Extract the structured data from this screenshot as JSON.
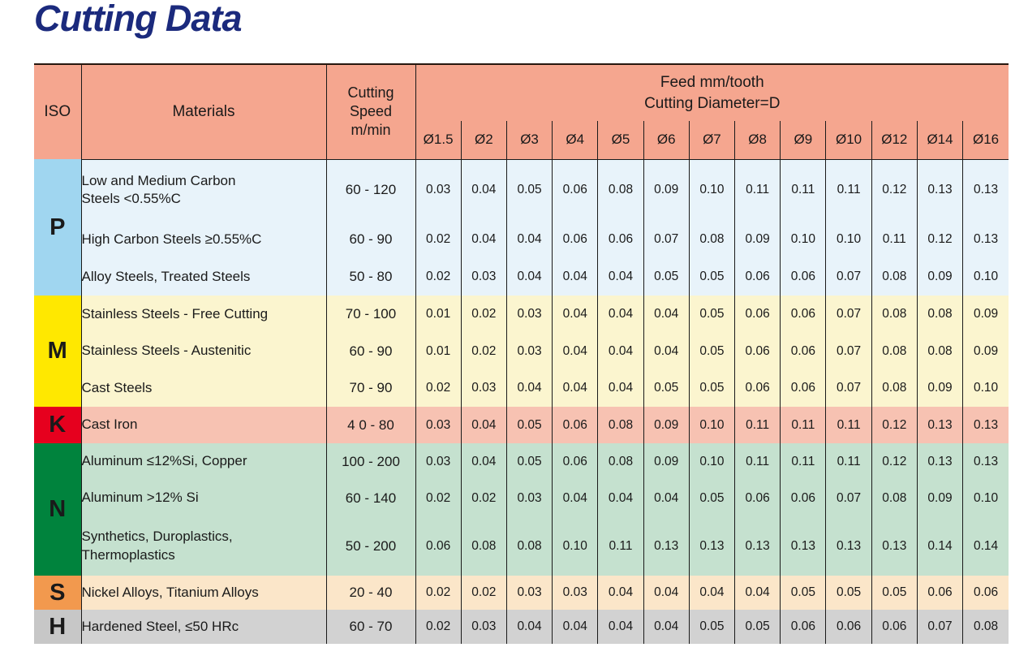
{
  "title": "Cutting Data",
  "title_color": "#1b2a7d",
  "table": {
    "colors": {
      "header_bg": "#f5a68f",
      "border": "#1a1a1a"
    },
    "headers": {
      "iso": "ISO",
      "materials": "Materials",
      "cutting_speed": "Cutting Speed m/min",
      "feed_title": "Feed mm/tooth",
      "feed_subtitle": "Cutting Diameter=D",
      "diameters": [
        "Ø1.5",
        "Ø2",
        "Ø3",
        "Ø4",
        "Ø5",
        "Ø6",
        "Ø7",
        "Ø8",
        "Ø9",
        "Ø10",
        "Ø12",
        "Ø14",
        "Ø16"
      ]
    },
    "groups": [
      {
        "iso": "P",
        "iso_bg": "#a0d6f0",
        "row_bg": "#e8f3fa",
        "rows": [
          {
            "material": "Low and Medium Carbon\nSteels <0.55%C",
            "speed": "60 - 120",
            "feeds": [
              "0.03",
              "0.04",
              "0.05",
              "0.06",
              "0.08",
              "0.09",
              "0.10",
              "0.11",
              "0.11",
              "0.11",
              "0.12",
              "0.13",
              "0.13"
            ]
          },
          {
            "material": "High Carbon Steels ≥0.55%C",
            "speed": "60 - 90",
            "feeds": [
              "0.02",
              "0.04",
              "0.04",
              "0.06",
              "0.06",
              "0.07",
              "0.08",
              "0.09",
              "0.10",
              "0.10",
              "0.11",
              "0.12",
              "0.13"
            ]
          },
          {
            "material": "Alloy Steels, Treated Steels",
            "speed": "50 - 80",
            "feeds": [
              "0.02",
              "0.03",
              "0.04",
              "0.04",
              "0.04",
              "0.05",
              "0.05",
              "0.06",
              "0.06",
              "0.07",
              "0.08",
              "0.09",
              "0.10"
            ]
          }
        ]
      },
      {
        "iso": "M",
        "iso_bg": "#ffe800",
        "row_bg": "#fbf5cf",
        "rows": [
          {
            "material": "Stainless Steels - Free Cutting",
            "speed": "70 - 100",
            "feeds": [
              "0.01",
              "0.02",
              "0.03",
              "0.04",
              "0.04",
              "0.04",
              "0.05",
              "0.06",
              "0.06",
              "0.07",
              "0.08",
              "0.08",
              "0.09"
            ]
          },
          {
            "material": "Stainless Steels - Austenitic",
            "speed": "60 - 90",
            "feeds": [
              "0.01",
              "0.02",
              "0.03",
              "0.04",
              "0.04",
              "0.04",
              "0.05",
              "0.06",
              "0.06",
              "0.07",
              "0.08",
              "0.08",
              "0.09"
            ]
          },
          {
            "material": "Cast Steels",
            "speed": "70 - 90",
            "feeds": [
              "0.02",
              "0.03",
              "0.04",
              "0.04",
              "0.04",
              "0.05",
              "0.05",
              "0.06",
              "0.06",
              "0.07",
              "0.08",
              "0.09",
              "0.10"
            ]
          }
        ]
      },
      {
        "iso": "K",
        "iso_bg": "#e6001e",
        "row_bg": "#f7c2b2",
        "rows": [
          {
            "material": "Cast Iron",
            "speed": "4 0 - 80",
            "feeds": [
              "0.03",
              "0.04",
              "0.05",
              "0.06",
              "0.08",
              "0.09",
              "0.10",
              "0.11",
              "0.11",
              "0.11",
              "0.12",
              "0.13",
              "0.13"
            ]
          }
        ]
      },
      {
        "iso": "N",
        "iso_bg": "#00833d",
        "row_bg": "#c5e1cf",
        "rows": [
          {
            "material": "Aluminum ≤12%Si, Copper",
            "speed": "100 - 200",
            "feeds": [
              "0.03",
              "0.04",
              "0.05",
              "0.06",
              "0.08",
              "0.09",
              "0.10",
              "0.11",
              "0.11",
              "0.11",
              "0.12",
              "0.13",
              "0.13"
            ]
          },
          {
            "material": "Aluminum >12% Si",
            "speed": "60 - 140",
            "feeds": [
              "0.02",
              "0.02",
              "0.03",
              "0.04",
              "0.04",
              "0.04",
              "0.05",
              "0.06",
              "0.06",
              "0.07",
              "0.08",
              "0.09",
              "0.10"
            ]
          },
          {
            "material": "Synthetics, Duroplastics,\nThermoplastics",
            "speed": "50 - 200",
            "feeds": [
              "0.06",
              "0.08",
              "0.08",
              "0.10",
              "0.11",
              "0.13",
              "0.13",
              "0.13",
              "0.13",
              "0.13",
              "0.13",
              "0.14",
              "0.14"
            ]
          }
        ]
      },
      {
        "iso": "S",
        "iso_bg": "#f2994e",
        "row_bg": "#fbe6c9",
        "rows": [
          {
            "material": "Nickel Alloys, Titanium Alloys",
            "speed": "20 - 40",
            "feeds": [
              "0.02",
              "0.02",
              "0.03",
              "0.03",
              "0.04",
              "0.04",
              "0.04",
              "0.04",
              "0.05",
              "0.05",
              "0.05",
              "0.06",
              "0.06"
            ]
          }
        ]
      },
      {
        "iso": "H",
        "iso_bg": "#c7c7c7",
        "row_bg": "#d2d2d2",
        "rows": [
          {
            "material": "Hardened Steel, ≤50 HRc",
            "speed": "60 - 70",
            "feeds": [
              "0.02",
              "0.03",
              "0.04",
              "0.04",
              "0.04",
              "0.04",
              "0.05",
              "0.05",
              "0.06",
              "0.06",
              "0.06",
              "0.07",
              "0.08"
            ]
          }
        ]
      }
    ]
  }
}
